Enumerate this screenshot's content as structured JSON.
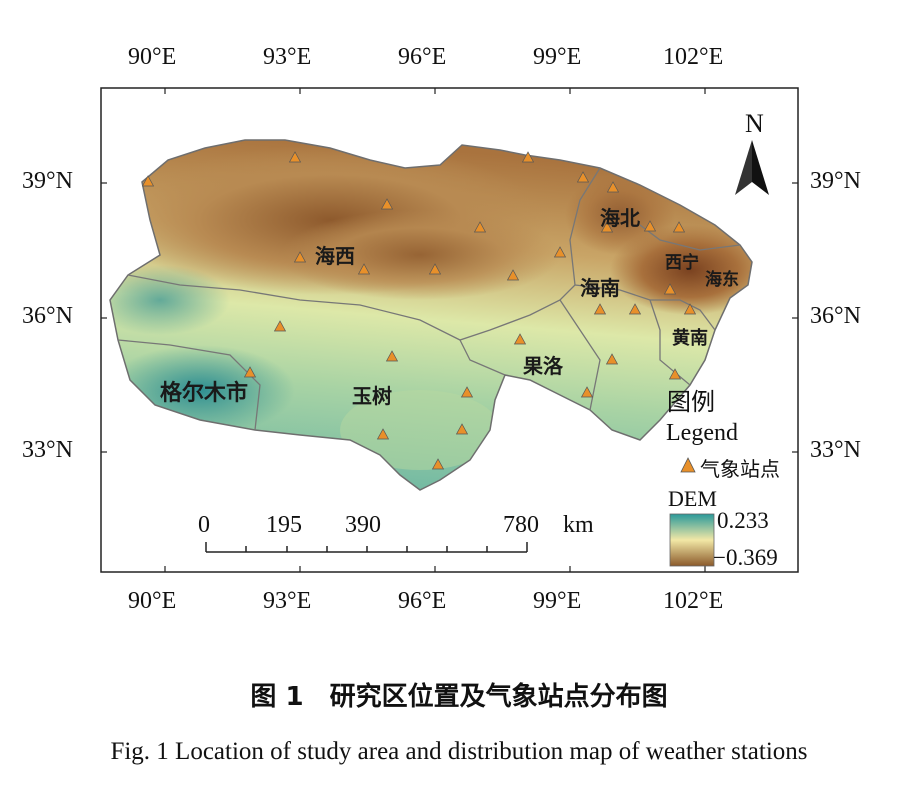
{
  "axes": {
    "top_lon": [
      "90°E",
      "93°E",
      "96°E",
      "99°E",
      "102°E"
    ],
    "bottom_lon": [
      "90°E",
      "93°E",
      "96°E",
      "99°E",
      "102°E"
    ],
    "left_lat": [
      "39°N",
      "36°N",
      "33°N"
    ],
    "right_lat": [
      "39°N",
      "36°N",
      "33°N"
    ]
  },
  "regions": [
    {
      "name": "海西"
    },
    {
      "name": "海北"
    },
    {
      "name": "西宁"
    },
    {
      "name": "海东"
    },
    {
      "name": "海南"
    },
    {
      "name": "黄南"
    },
    {
      "name": "果洛"
    },
    {
      "name": "玉树"
    },
    {
      "name": "格尔木市"
    }
  ],
  "north_arrow": "N",
  "legend": {
    "title_cn": "图例",
    "title_en": "Legend",
    "station_label": "气象站点",
    "dem_title": "DEM",
    "dem_high": "0.233",
    "dem_low": "−0.369",
    "colors": {
      "high": "#2a9a9a",
      "mid": "#f2e8a6",
      "low": "#8b5a2b",
      "station": "#e8902a"
    }
  },
  "scale_bar": {
    "labels": [
      "0",
      "195",
      "390",
      "780"
    ],
    "unit": "km"
  },
  "stations_count": 30,
  "caption": {
    "cn": "图 1　研究区位置及气象站点分布图",
    "en": "Fig. 1 Location of study area and distribution map of weather stations"
  }
}
